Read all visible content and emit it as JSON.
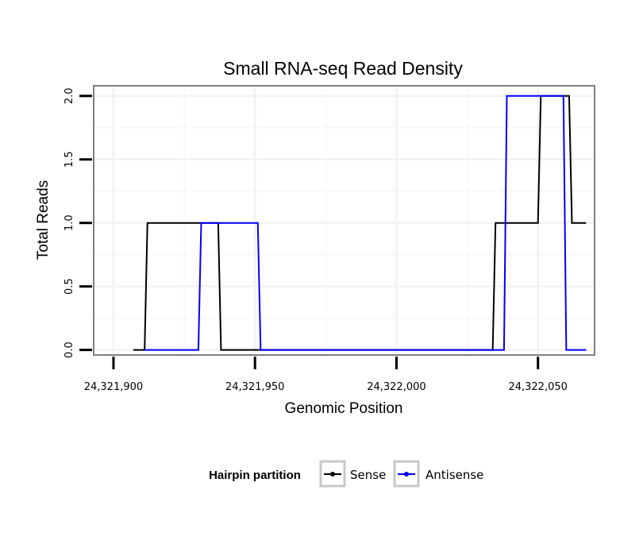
{
  "chart_data": {
    "type": "line",
    "title": "Small RNA-seq Read Density",
    "xlabel": "Genomic Position",
    "ylabel": "Total Reads",
    "xlim": [
      24321893,
      24322070
    ],
    "ylim": [
      -0.04,
      2.08
    ],
    "x_ticks": [
      24321900,
      24321950,
      24322000,
      24322050
    ],
    "x_tick_labels": [
      "24,321,900",
      "24,321,950",
      "24,322,000",
      "24,322,050"
    ],
    "y_ticks": [
      0,
      0.5,
      1,
      1.5,
      2
    ],
    "y_tick_labels": [
      "0.0",
      "0.5",
      "1.0",
      "1.5",
      "2.0"
    ],
    "grid": true,
    "legend": {
      "title": "Hairpin partition",
      "position": "bottom"
    },
    "series": [
      {
        "name": "Sense",
        "color": "#000000",
        "points": [
          [
            24321907,
            0
          ],
          [
            24321911,
            0
          ],
          [
            24321912,
            1
          ],
          [
            24321937,
            1
          ],
          [
            24321938,
            0
          ],
          [
            24321998,
            0
          ],
          [
            24322034,
            0
          ],
          [
            24322035,
            1
          ],
          [
            24322050,
            1
          ],
          [
            24322051,
            2
          ],
          [
            24322061,
            2
          ],
          [
            24322062,
            1
          ],
          [
            24322067,
            1
          ]
        ]
      },
      {
        "name": "Antisense",
        "color": "#0000ff",
        "points": [
          [
            24321911,
            0
          ],
          [
            24321930,
            0
          ],
          [
            24321931,
            1
          ],
          [
            24321951,
            1
          ],
          [
            24321952,
            0
          ],
          [
            24322038,
            0
          ],
          [
            24322039,
            2
          ],
          [
            24322050,
            2
          ],
          [
            24322051,
            2
          ],
          [
            24322052,
            2
          ],
          [
            24322059,
            2
          ],
          [
            24322060,
            0
          ],
          [
            24322067,
            0
          ]
        ]
      }
    ]
  }
}
